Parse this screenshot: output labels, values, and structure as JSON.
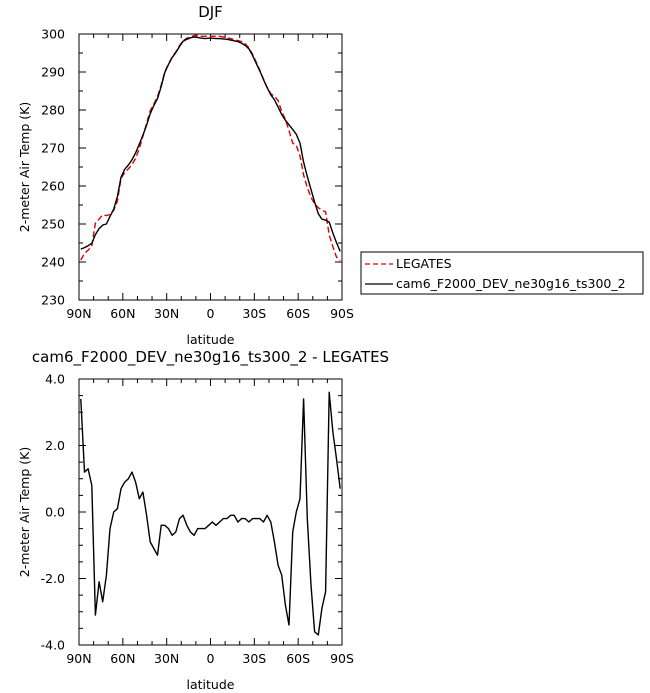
{
  "chart_data": [
    {
      "type": "line",
      "title": "DJF",
      "xlabel": "latitude",
      "ylabel": "2-meter Air Temp (K)",
      "x_tick_labels": [
        "90N",
        "60N",
        "30N",
        "0",
        "30S",
        "60S",
        "90S"
      ],
      "x_tick_values": [
        90,
        60,
        30,
        0,
        -30,
        -60,
        -90
      ],
      "xlim": [
        90,
        -90
      ],
      "ylim": [
        230,
        300
      ],
      "y_ticks": [
        230,
        240,
        250,
        260,
        270,
        280,
        290,
        300
      ],
      "grid": false,
      "legend_placement": "right",
      "series": [
        {
          "name": "LEGATES",
          "color": "#e00000",
          "dash": true,
          "x": [
            88.75,
            86.25,
            83.75,
            81.25,
            78.75,
            76.25,
            73.75,
            71.25,
            68.75,
            66.25,
            63.75,
            61.25,
            58.75,
            56.25,
            53.75,
            51.25,
            48.75,
            46.25,
            43.75,
            41.25,
            38.75,
            36.25,
            33.75,
            31.25,
            28.75,
            26.25,
            23.75,
            21.25,
            18.75,
            16.25,
            13.75,
            11.25,
            8.75,
            6.25,
            3.75,
            1.25,
            -1.25,
            -3.75,
            -6.25,
            -8.75,
            -11.25,
            -13.75,
            -16.25,
            -18.75,
            -21.25,
            -23.75,
            -26.25,
            -28.75,
            -31.25,
            -33.75,
            -36.25,
            -38.75,
            -41.25,
            -43.75,
            -46.25,
            -48.75,
            -51.25,
            -53.75,
            -56.25,
            -58.75,
            -61.25,
            -63.75,
            -66.25,
            -68.75,
            -71.25,
            -73.75,
            -76.25,
            -78.75,
            -81.25,
            -83.75,
            -86.25,
            -88.75
          ],
          "values": [
            240.5,
            242.3,
            243.1,
            244.2,
            250.2,
            251.3,
            252.4,
            252.2,
            252.5,
            253.6,
            256.0,
            262.0,
            263.5,
            264.5,
            265.6,
            267.3,
            269.9,
            273.1,
            276.5,
            279.8,
            281.6,
            283.5,
            286.6,
            290.1,
            292.1,
            293.9,
            295.3,
            296.9,
            298.3,
            298.9,
            299.2,
            299.6,
            299.6,
            299.4,
            299.4,
            299.4,
            299.4,
            299.4,
            299.4,
            299.2,
            299.0,
            298.8,
            298.5,
            298.3,
            298.0,
            297.4,
            296.4,
            294.7,
            292.6,
            290.5,
            288.1,
            286.0,
            284.3,
            283.6,
            282.5,
            279.6,
            277.5,
            274.6,
            271.3,
            270.7,
            267.9,
            262.9,
            259.6,
            257.0,
            255.3,
            254.3,
            253.6,
            253.2,
            247.1,
            244.0,
            241.3,
            240.4
          ]
        },
        {
          "name": "cam6_F2000_DEV_ne30g16_ts300_2",
          "color": "#000000",
          "dash": false,
          "x": [
            88.75,
            86.25,
            83.75,
            81.25,
            78.75,
            76.25,
            73.75,
            71.25,
            68.75,
            66.25,
            63.75,
            61.25,
            58.75,
            56.25,
            53.75,
            51.25,
            48.75,
            46.25,
            43.75,
            41.25,
            38.75,
            36.25,
            33.75,
            31.25,
            28.75,
            26.25,
            23.75,
            21.25,
            18.75,
            16.25,
            13.75,
            11.25,
            8.75,
            6.25,
            3.75,
            1.25,
            -1.25,
            -3.75,
            -6.25,
            -8.75,
            -11.25,
            -13.75,
            -16.25,
            -18.75,
            -21.25,
            -23.75,
            -26.25,
            -28.75,
            -31.25,
            -33.75,
            -36.25,
            -38.75,
            -41.25,
            -43.75,
            -46.25,
            -48.75,
            -51.25,
            -53.75,
            -56.25,
            -58.75,
            -61.25,
            -63.75,
            -66.25,
            -68.75,
            -71.25,
            -73.75,
            -76.25,
            -78.75,
            -81.25,
            -83.75,
            -86.25,
            -88.75
          ],
          "values": [
            243.4,
            243.8,
            244.3,
            244.9,
            247.2,
            248.8,
            249.7,
            250.0,
            252.0,
            253.9,
            257.2,
            262.3,
            264.4,
            265.5,
            266.9,
            268.7,
            271.0,
            273.4,
            276.0,
            279.0,
            281.2,
            283.0,
            286.2,
            289.9,
            292.0,
            293.8,
            295.1,
            296.7,
            298.1,
            298.6,
            299.0,
            299.2,
            299.1,
            298.9,
            298.8,
            298.9,
            298.9,
            298.8,
            298.8,
            298.7,
            298.6,
            298.4,
            298.2,
            298.0,
            297.6,
            297.0,
            296.1,
            294.4,
            292.3,
            290.3,
            288.0,
            285.9,
            284.0,
            282.7,
            280.8,
            278.8,
            277.3,
            276.1,
            274.9,
            273.6,
            271.3,
            266.3,
            262.5,
            259.1,
            255.8,
            252.7,
            251.3,
            251.0,
            250.5,
            247.6,
            245.1,
            242.8
          ]
        }
      ]
    },
    {
      "type": "line",
      "title": "cam6_F2000_DEV_ne30g16_ts300_2 - LEGATES",
      "xlabel": "latitude",
      "ylabel": "2-meter Air Temp (K)",
      "x_tick_labels": [
        "90N",
        "60N",
        "30N",
        "0",
        "30S",
        "60S",
        "90S"
      ],
      "x_tick_values": [
        90,
        60,
        30,
        0,
        -30,
        -60,
        -90
      ],
      "xlim": [
        90,
        -90
      ],
      "ylim": [
        -4.0,
        4.0
      ],
      "y_ticks": [
        -4.0,
        -2.0,
        0.0,
        2.0,
        4.0
      ],
      "y_tick_labels": [
        "-4.0",
        "-2.0",
        "0.0",
        "2.0",
        "4.0"
      ],
      "grid": false,
      "series": [
        {
          "color": "#000000",
          "dash": false,
          "x": [
            88.75,
            86.25,
            83.75,
            81.25,
            78.75,
            76.25,
            73.75,
            71.25,
            68.75,
            66.25,
            63.75,
            61.25,
            58.75,
            56.25,
            53.75,
            51.25,
            48.75,
            46.25,
            43.75,
            41.25,
            38.75,
            36.25,
            33.75,
            31.25,
            28.75,
            26.25,
            23.75,
            21.25,
            18.75,
            16.25,
            13.75,
            11.25,
            8.75,
            6.25,
            3.75,
            1.25,
            -1.25,
            -3.75,
            -6.25,
            -8.75,
            -11.25,
            -13.75,
            -16.25,
            -18.75,
            -21.25,
            -23.75,
            -26.25,
            -28.75,
            -31.25,
            -33.75,
            -36.25,
            -38.75,
            -41.25,
            -43.75,
            -46.25,
            -48.75,
            -51.25,
            -53.75,
            -56.25,
            -58.75,
            -61.25,
            -63.75,
            -66.25,
            -68.75,
            -71.25,
            -73.75,
            -76.25,
            -78.75,
            -81.25,
            -83.75,
            -86.25,
            -88.75
          ],
          "values": [
            3.4,
            1.2,
            1.3,
            0.8,
            -3.1,
            -2.1,
            -2.7,
            -1.9,
            -0.5,
            0.0,
            0.1,
            0.7,
            0.9,
            1.0,
            1.2,
            0.9,
            0.4,
            0.6,
            -0.1,
            -0.9,
            -1.1,
            -1.3,
            -0.4,
            -0.4,
            -0.5,
            -0.7,
            -0.6,
            -0.2,
            -0.1,
            -0.4,
            -0.6,
            -0.7,
            -0.5,
            -0.5,
            -0.5,
            -0.4,
            -0.3,
            -0.4,
            -0.3,
            -0.2,
            -0.2,
            -0.1,
            -0.1,
            -0.3,
            -0.2,
            -0.2,
            -0.3,
            -0.2,
            -0.2,
            -0.2,
            -0.3,
            -0.1,
            -0.3,
            -0.9,
            -1.6,
            -1.9,
            -2.8,
            -3.4,
            -0.6,
            0.0,
            0.4,
            3.4,
            -0.2,
            -2.2,
            -3.6,
            -3.7,
            -2.9,
            -2.4,
            3.6,
            2.4,
            1.6,
            0.7
          ]
        }
      ]
    }
  ]
}
